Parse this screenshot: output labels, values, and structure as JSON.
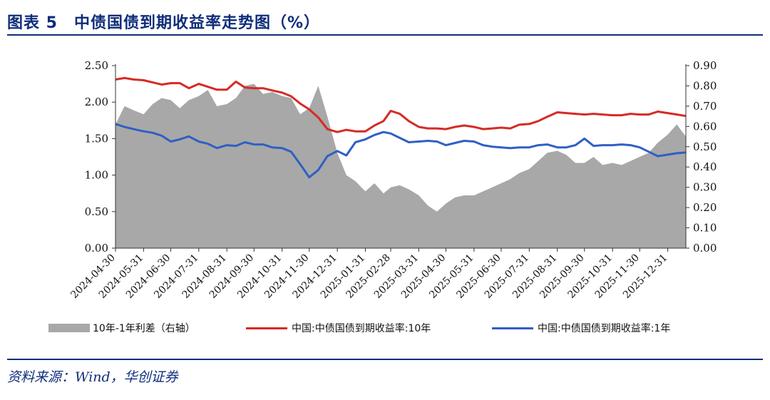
{
  "header": {
    "title": "图表 5　中债国债到期收益率走势图（%）"
  },
  "footer": {
    "source": "资料来源：Wind，华创证券"
  },
  "chart_data": {
    "type": "line",
    "subtype": "dual-axis line with area",
    "ylim_left": [
      0,
      2.5
    ],
    "ylim_right": [
      0,
      0.9
    ],
    "yticks_left": [
      "0.00",
      "0.50",
      "1.00",
      "1.50",
      "2.00",
      "2.50"
    ],
    "yticks_right": [
      "0.00",
      "0.10",
      "0.20",
      "0.30",
      "0.40",
      "0.50",
      "0.60",
      "0.70",
      "0.80",
      "0.90"
    ],
    "x_tick_labels": [
      "2024-04-30",
      "2024-05-31",
      "2024-06-30",
      "2024-07-31",
      "2024-08-31",
      "2024-09-30",
      "2024-10-31",
      "2024-11-30",
      "2024-12-31",
      "2025-01-31",
      "2025-02-28",
      "2025-03-31",
      "2025-04-30",
      "2025-05-31",
      "2025-06-30",
      "2025-07-31",
      "2025-08-31",
      "2025-09-30",
      "2025-10-31",
      "2025-11-30",
      "2025-12-31"
    ],
    "grid": false,
    "legend_position": "bottom",
    "series": [
      {
        "name": "10年-1年利差（右轴）",
        "type": "area",
        "axis": "right",
        "color": "#a8a8a8",
        "x": [
          "2024-04-30",
          "2024-05-10",
          "2024-05-20",
          "2024-05-31",
          "2024-06-10",
          "2024-06-20",
          "2024-06-30",
          "2024-07-10",
          "2024-07-20",
          "2024-07-31",
          "2024-08-10",
          "2024-08-20",
          "2024-08-31",
          "2024-09-10",
          "2024-09-20",
          "2024-09-30",
          "2024-10-10",
          "2024-10-20",
          "2024-10-31",
          "2024-11-10",
          "2024-11-20",
          "2024-11-30",
          "2024-12-10",
          "2024-12-20",
          "2024-12-31",
          "2025-01-10",
          "2025-01-20",
          "2025-01-31",
          "2025-02-10",
          "2025-02-20",
          "2025-02-28",
          "2025-03-10",
          "2025-03-20",
          "2025-03-31",
          "2025-04-10",
          "2025-04-20",
          "2025-04-30",
          "2025-05-10",
          "2025-05-20",
          "2025-05-31",
          "2025-06-10",
          "2025-06-20",
          "2025-06-30",
          "2025-07-10",
          "2025-07-20",
          "2025-07-31",
          "2025-08-10",
          "2025-08-20",
          "2025-08-31",
          "2025-09-10",
          "2025-09-20",
          "2025-09-30",
          "2025-10-10",
          "2025-10-20",
          "2025-10-31",
          "2025-11-10",
          "2025-11-20",
          "2025-11-30",
          "2025-12-10",
          "2025-12-20",
          "2025-12-31",
          "2026-01-10",
          "2026-01-20"
        ],
        "values": [
          0.61,
          0.7,
          0.68,
          0.66,
          0.71,
          0.74,
          0.73,
          0.69,
          0.73,
          0.75,
          0.78,
          0.7,
          0.71,
          0.74,
          0.8,
          0.81,
          0.76,
          0.77,
          0.75,
          0.74,
          0.66,
          0.69,
          0.8,
          0.65,
          0.47,
          0.36,
          0.33,
          0.28,
          0.32,
          0.27,
          0.3,
          0.31,
          0.29,
          0.26,
          0.21,
          0.18,
          0.22,
          0.25,
          0.26,
          0.26,
          0.28,
          0.3,
          0.32,
          0.34,
          0.37,
          0.39,
          0.43,
          0.47,
          0.48,
          0.46,
          0.42,
          0.42,
          0.45,
          0.41,
          0.42,
          0.41,
          0.43,
          0.45,
          0.47,
          0.52,
          0.56,
          0.61,
          0.55
        ]
      },
      {
        "name": "中国:中债国债到期收益率:10年",
        "type": "line",
        "axis": "left",
        "color": "#d62a25",
        "x": [
          "2024-04-30",
          "2024-05-10",
          "2024-05-20",
          "2024-05-31",
          "2024-06-10",
          "2024-06-20",
          "2024-06-30",
          "2024-07-10",
          "2024-07-20",
          "2024-07-31",
          "2024-08-10",
          "2024-08-20",
          "2024-08-31",
          "2024-09-10",
          "2024-09-20",
          "2024-09-30",
          "2024-10-10",
          "2024-10-20",
          "2024-10-31",
          "2024-11-10",
          "2024-11-20",
          "2024-11-30",
          "2024-12-10",
          "2024-12-20",
          "2024-12-31",
          "2025-01-10",
          "2025-01-20",
          "2025-01-31",
          "2025-02-10",
          "2025-02-20",
          "2025-02-28",
          "2025-03-10",
          "2025-03-20",
          "2025-03-31",
          "2025-04-10",
          "2025-04-20",
          "2025-04-30",
          "2025-05-10",
          "2025-05-20",
          "2025-05-31",
          "2025-06-10",
          "2025-06-20",
          "2025-06-30",
          "2025-07-10",
          "2025-07-20",
          "2025-07-31",
          "2025-08-10",
          "2025-08-20",
          "2025-08-31",
          "2025-09-10",
          "2025-09-20",
          "2025-09-30",
          "2025-10-10",
          "2025-10-20",
          "2025-10-31",
          "2025-11-10",
          "2025-11-20",
          "2025-11-30",
          "2025-12-10",
          "2025-12-20",
          "2025-12-31",
          "2026-01-10",
          "2026-01-20"
        ],
        "values": [
          2.31,
          2.33,
          2.31,
          2.3,
          2.27,
          2.24,
          2.26,
          2.26,
          2.19,
          2.25,
          2.21,
          2.17,
          2.17,
          2.28,
          2.2,
          2.19,
          2.19,
          2.16,
          2.13,
          2.08,
          1.98,
          1.9,
          1.79,
          1.63,
          1.59,
          1.62,
          1.6,
          1.6,
          1.68,
          1.74,
          1.88,
          1.84,
          1.74,
          1.66,
          1.64,
          1.64,
          1.63,
          1.66,
          1.68,
          1.66,
          1.63,
          1.64,
          1.65,
          1.64,
          1.69,
          1.7,
          1.74,
          1.8,
          1.86,
          1.85,
          1.84,
          1.83,
          1.84,
          1.83,
          1.82,
          1.82,
          1.84,
          1.83,
          1.83,
          1.87,
          1.85,
          1.83,
          1.81
        ]
      },
      {
        "name": "中国:中债国债到期收益率:1年",
        "type": "line",
        "axis": "left",
        "color": "#2f5fc4",
        "x": [
          "2024-04-30",
          "2024-05-10",
          "2024-05-20",
          "2024-05-31",
          "2024-06-10",
          "2024-06-20",
          "2024-06-30",
          "2024-07-10",
          "2024-07-20",
          "2024-07-31",
          "2024-08-10",
          "2024-08-20",
          "2024-08-31",
          "2024-09-10",
          "2024-09-20",
          "2024-09-30",
          "2024-10-10",
          "2024-10-20",
          "2024-10-31",
          "2024-11-10",
          "2024-11-20",
          "2024-11-30",
          "2024-12-10",
          "2024-12-20",
          "2024-12-31",
          "2025-01-10",
          "2025-01-20",
          "2025-01-31",
          "2025-02-10",
          "2025-02-20",
          "2025-02-28",
          "2025-03-10",
          "2025-03-20",
          "2025-03-31",
          "2025-04-10",
          "2025-04-20",
          "2025-04-30",
          "2025-05-10",
          "2025-05-20",
          "2025-05-31",
          "2025-06-10",
          "2025-06-20",
          "2025-06-30",
          "2025-07-10",
          "2025-07-20",
          "2025-07-31",
          "2025-08-10",
          "2025-08-20",
          "2025-08-31",
          "2025-09-10",
          "2025-09-20",
          "2025-09-30",
          "2025-10-10",
          "2025-10-20",
          "2025-10-31",
          "2025-11-10",
          "2025-11-20",
          "2025-11-30",
          "2025-12-10",
          "2025-12-20",
          "2025-12-31",
          "2026-01-10",
          "2026-01-20"
        ],
        "values": [
          1.7,
          1.66,
          1.63,
          1.6,
          1.58,
          1.54,
          1.46,
          1.49,
          1.53,
          1.46,
          1.43,
          1.37,
          1.41,
          1.4,
          1.45,
          1.42,
          1.42,
          1.38,
          1.37,
          1.32,
          1.15,
          0.97,
          1.07,
          1.26,
          1.33,
          1.27,
          1.45,
          1.49,
          1.55,
          1.59,
          1.57,
          1.51,
          1.45,
          1.46,
          1.47,
          1.46,
          1.41,
          1.44,
          1.47,
          1.46,
          1.41,
          1.39,
          1.38,
          1.37,
          1.38,
          1.38,
          1.41,
          1.42,
          1.38,
          1.38,
          1.41,
          1.5,
          1.4,
          1.41,
          1.41,
          1.42,
          1.41,
          1.38,
          1.32,
          1.26,
          1.28,
          1.3,
          1.31
        ]
      }
    ]
  }
}
